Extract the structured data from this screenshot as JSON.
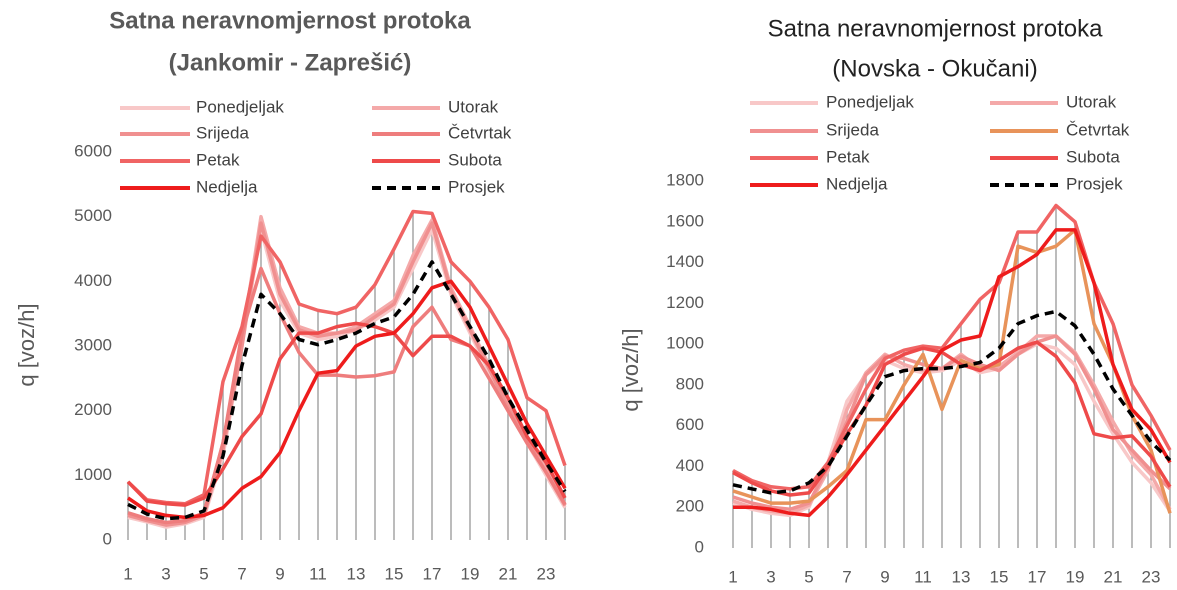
{
  "chart_data": [
    {
      "type": "line",
      "title": "Satna neravnomjernost protoka",
      "subtitle": "(Jankomir - Zaprešić)",
      "ylabel": "q [voz/h]",
      "x": [
        1,
        2,
        3,
        4,
        5,
        6,
        7,
        8,
        9,
        10,
        11,
        12,
        13,
        14,
        15,
        16,
        17,
        18,
        19,
        20,
        21,
        22,
        23,
        24
      ],
      "xlim": [
        1,
        24
      ],
      "xticks": [
        1,
        3,
        5,
        7,
        9,
        11,
        13,
        15,
        17,
        19,
        21,
        23
      ],
      "ylim": [
        0,
        6000
      ],
      "yticks": [
        0,
        1000,
        2000,
        3000,
        4000,
        5000,
        6000
      ],
      "legend": "top",
      "drop_lines": true,
      "series": [
        {
          "name": "Ponedjeljak",
          "color": "#f8c8c8",
          "values": [
            350,
            280,
            200,
            250,
            350,
            1300,
            3000,
            4800,
            3700,
            3200,
            3100,
            3150,
            3250,
            3400,
            3600,
            4200,
            4800,
            3800,
            3200,
            2600,
            2000,
            1500,
            1000,
            500
          ]
        },
        {
          "name": "Utorak",
          "color": "#f4a9a9",
          "values": [
            400,
            300,
            250,
            280,
            400,
            1500,
            3100,
            5000,
            3900,
            3300,
            3200,
            3200,
            3300,
            3500,
            3700,
            4400,
            4950,
            3900,
            3300,
            2700,
            2100,
            1600,
            1100,
            550
          ]
        },
        {
          "name": "Srijeda",
          "color": "#f09090",
          "values": [
            380,
            300,
            230,
            270,
            380,
            1400,
            3000,
            4900,
            3800,
            3250,
            3150,
            3200,
            3250,
            3450,
            3650,
            4300,
            4900,
            3850,
            3250,
            2650,
            2050,
            1550,
            1050,
            530
          ]
        },
        {
          "name": "Četvrtak",
          "color": "#ee7d7d",
          "values": [
            420,
            330,
            270,
            300,
            420,
            1500,
            3200,
            4200,
            3500,
            2900,
            2550,
            2550,
            2520,
            2540,
            2600,
            3300,
            3600,
            3100,
            3000,
            2500,
            2000,
            1500,
            1050,
            550
          ]
        },
        {
          "name": "Petak",
          "color": "#f06464",
          "values": [
            900,
            620,
            580,
            560,
            700,
            2450,
            3300,
            4700,
            4300,
            3650,
            3550,
            3500,
            3600,
            3950,
            4500,
            5080,
            5050,
            4300,
            4000,
            3600,
            3100,
            2200,
            2000,
            1150
          ]
        },
        {
          "name": "Subota",
          "color": "#ee4a4a",
          "values": [
            900,
            600,
            560,
            540,
            650,
            1100,
            1600,
            1950,
            2800,
            3200,
            3200,
            3300,
            3350,
            3300,
            3200,
            2850,
            3150,
            3150,
            3000,
            2700,
            2200,
            1600,
            1200,
            650
          ]
        },
        {
          "name": "Nedjelja",
          "color": "#ee1c1c",
          "values": [
            650,
            450,
            380,
            350,
            380,
            500,
            800,
            980,
            1350,
            2000,
            2580,
            2620,
            3000,
            3150,
            3200,
            3500,
            3900,
            4000,
            3600,
            3000,
            2400,
            1800,
            1300,
            800
          ]
        },
        {
          "name": "Prosjek",
          "color": "#000000",
          "dashed": true,
          "values": [
            550,
            400,
            330,
            350,
            450,
            1300,
            2700,
            3800,
            3500,
            3100,
            3020,
            3100,
            3200,
            3350,
            3450,
            3800,
            4300,
            3800,
            3300,
            2800,
            2200,
            1700,
            1200,
            750
          ]
        }
      ]
    },
    {
      "type": "line",
      "title": "Satna neravnomjernost protoka",
      "subtitle": "(Novska - Okučani)",
      "ylabel": "q [voz/h]",
      "x": [
        1,
        2,
        3,
        4,
        5,
        6,
        7,
        8,
        9,
        10,
        11,
        12,
        13,
        14,
        15,
        16,
        17,
        18,
        19,
        20,
        21,
        22,
        23,
        24
      ],
      "xlim": [
        1,
        24
      ],
      "xticks": [
        1,
        3,
        5,
        7,
        9,
        11,
        13,
        15,
        17,
        19,
        21,
        23
      ],
      "ylim": [
        0,
        1800
      ],
      "yticks": [
        0,
        200,
        400,
        600,
        800,
        1000,
        1200,
        1400,
        1600,
        1800
      ],
      "legend": "top",
      "drop_lines": true,
      "series": [
        {
          "name": "Ponedjeljak",
          "color": "#f8c8c8",
          "values": [
            220,
            190,
            170,
            160,
            200,
            420,
            720,
            850,
            920,
            880,
            860,
            870,
            920,
            860,
            880,
            950,
            1000,
            980,
            900,
            720,
            560,
            420,
            320,
            180
          ]
        },
        {
          "name": "Utorak",
          "color": "#f4a9a9",
          "values": [
            230,
            200,
            180,
            170,
            210,
            380,
            680,
            860,
            950,
            900,
            870,
            880,
            950,
            880,
            890,
            960,
            1040,
            1040,
            960,
            800,
            620,
            460,
            360,
            190
          ]
        },
        {
          "name": "Srijeda",
          "color": "#f09090",
          "values": [
            250,
            220,
            200,
            190,
            220,
            400,
            620,
            850,
            940,
            930,
            900,
            880,
            940,
            900,
            870,
            950,
            1010,
            1040,
            950,
            780,
            580,
            480,
            380,
            290
          ]
        },
        {
          "name": "Četvrtak",
          "color": "#e8935a",
          "values": [
            280,
            250,
            220,
            220,
            230,
            300,
            380,
            630,
            630,
            800,
            950,
            680,
            920,
            880,
            900,
            1480,
            1450,
            1480,
            1560,
            1100,
            900,
            650,
            480,
            170
          ]
        },
        {
          "name": "Petak",
          "color": "#f06464",
          "values": [
            380,
            330,
            300,
            290,
            300,
            420,
            600,
            780,
            930,
            970,
            990,
            980,
            1100,
            1220,
            1300,
            1550,
            1550,
            1680,
            1600,
            1300,
            1100,
            800,
            650,
            480
          ]
        },
        {
          "name": "Subota",
          "color": "#ee4a4a",
          "values": [
            370,
            320,
            280,
            260,
            270,
            400,
            560,
            700,
            900,
            950,
            980,
            960,
            900,
            870,
            920,
            980,
            1010,
            940,
            810,
            560,
            540,
            550,
            450,
            300
          ]
        },
        {
          "name": "Nedjelja",
          "color": "#ee1c1c",
          "values": [
            200,
            200,
            190,
            170,
            160,
            250,
            360,
            480,
            600,
            720,
            840,
            970,
            1020,
            1040,
            1330,
            1380,
            1440,
            1560,
            1560,
            1300,
            900,
            680,
            580,
            420
          ]
        },
        {
          "name": "Prosjek",
          "color": "#000000",
          "dashed": true,
          "values": [
            310,
            290,
            270,
            280,
            320,
            400,
            550,
            700,
            840,
            870,
            880,
            880,
            890,
            910,
            980,
            1100,
            1140,
            1160,
            1090,
            950,
            780,
            650,
            520,
            430
          ]
        }
      ]
    }
  ]
}
